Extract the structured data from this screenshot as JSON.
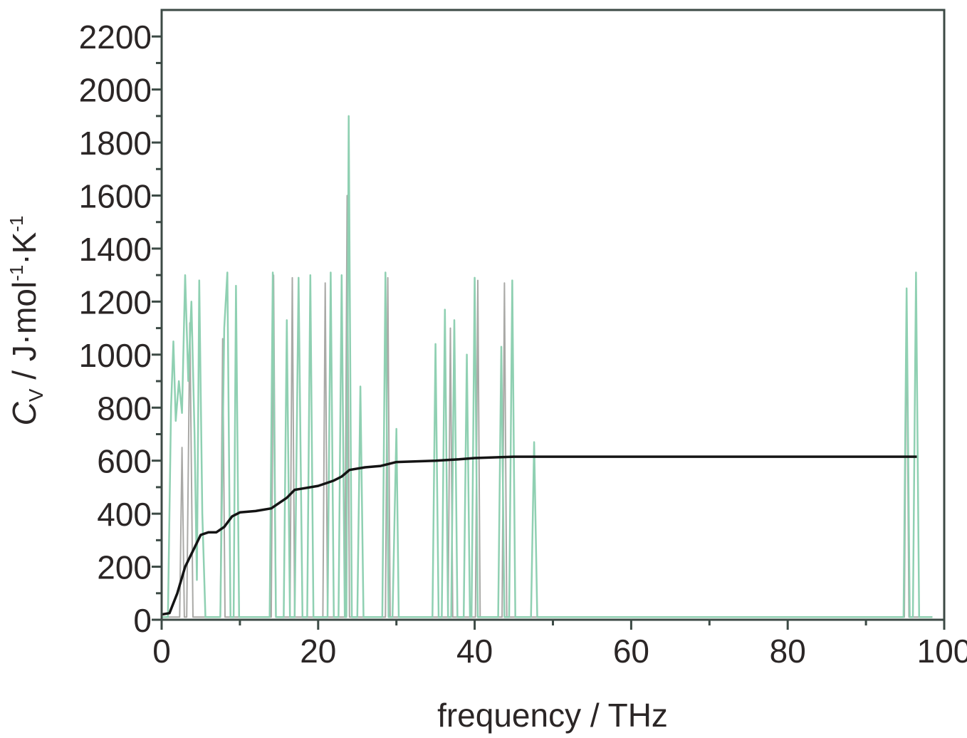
{
  "chart_data": {
    "type": "line",
    "x_label": "frequency / THz",
    "y_label": [
      "C",
      "V",
      " / J·mol",
      "-1",
      "·K",
      "-1"
    ],
    "xlim": [
      0,
      100
    ],
    "xticks": [
      0,
      20,
      40,
      60,
      80,
      100
    ],
    "x_minor_ticks": [
      10,
      30,
      50,
      70,
      90
    ],
    "ylim": [
      0,
      2300
    ],
    "yticks": [
      0,
      200,
      400,
      600,
      800,
      1000,
      1200,
      1400,
      1600,
      1800,
      2000,
      2200
    ],
    "y_minor_ticks": [
      100,
      300,
      500,
      700,
      900,
      1100,
      1300,
      1500,
      1700,
      1900,
      2100
    ],
    "series": [
      {
        "color": "#a9a9a6",
        "width": 2,
        "x": [
          0,
          2.3,
          2.6,
          2.9,
          3.2,
          3.6,
          4.0,
          7.5,
          7.8,
          8.1,
          14.0,
          14.3,
          14.6,
          16.4,
          16.7,
          17.0,
          20.6,
          20.9,
          21.2,
          23.4,
          23.7,
          24.0,
          28.6,
          28.9,
          29.2,
          36.6,
          36.9,
          37.2,
          40.1,
          40.4,
          40.7,
          43.5,
          43.8,
          44.1,
          94.9,
          95.2,
          95.5,
          98.5
        ],
        "values": [
          10,
          10,
          650,
          10,
          10,
          1120,
          10,
          10,
          1060,
          10,
          10,
          1300,
          10,
          10,
          1290,
          10,
          10,
          1270,
          10,
          10,
          1600,
          10,
          10,
          1290,
          10,
          10,
          1100,
          10,
          10,
          1280,
          10,
          10,
          1270,
          10,
          10,
          1180,
          10,
          10
        ]
      },
      {
        "color": "#8fd0b2",
        "width": 2.5,
        "x": [
          0,
          0.8,
          1.2,
          1.5,
          1.8,
          2.2,
          2.6,
          3.0,
          3.4,
          3.8,
          4.2,
          4.5,
          4.8,
          5.2,
          5.6,
          7.5,
          8.0,
          8.4,
          8.8,
          9.2,
          9.5,
          9.9,
          13.8,
          14.2,
          14.6,
          15.6,
          16.0,
          16.4,
          17.0,
          17.5,
          18.0,
          18.6,
          19.0,
          19.4,
          21.2,
          21.6,
          22.0,
          22.6,
          23.0,
          23.4,
          23.6,
          23.9,
          24.3,
          25.0,
          25.4,
          25.8,
          28.2,
          28.6,
          29.0,
          29.5,
          30.0,
          30.3,
          34.6,
          35.0,
          35.4,
          35.8,
          36.2,
          36.6,
          37.0,
          37.4,
          37.8,
          38.6,
          39.0,
          39.4,
          39.6,
          40.0,
          40.4,
          43.0,
          43.4,
          43.8,
          44.4,
          44.8,
          45.2,
          47.2,
          47.6,
          48.0,
          94.8,
          95.2,
          95.6,
          96.0,
          96.4,
          96.8,
          98.5
        ],
        "values": [
          10,
          10,
          800,
          1050,
          750,
          900,
          780,
          1300,
          900,
          1200,
          700,
          150,
          1280,
          400,
          10,
          10,
          1100,
          1310,
          10,
          10,
          1260,
          10,
          10,
          1310,
          10,
          10,
          1130,
          10,
          10,
          1290,
          10,
          10,
          1300,
          10,
          10,
          1310,
          10,
          10,
          1300,
          10,
          10,
          1900,
          10,
          10,
          880,
          10,
          10,
          1310,
          10,
          10,
          720,
          10,
          10,
          1040,
          10,
          10,
          1170,
          10,
          10,
          1130,
          10,
          10,
          1000,
          10,
          10,
          1290,
          10,
          10,
          1030,
          10,
          10,
          1280,
          10,
          10,
          670,
          10,
          10,
          1250,
          10,
          10,
          1310,
          10,
          10
        ]
      },
      {
        "color": "#141414",
        "width": 3.5,
        "x": [
          0,
          1,
          2,
          3,
          4,
          5,
          6,
          7,
          8,
          9,
          10,
          12,
          14,
          15,
          16,
          17,
          18,
          20,
          22,
          23,
          24,
          26,
          28,
          30,
          35,
          38,
          40,
          45,
          50,
          96.5
        ],
        "values": [
          20,
          25,
          100,
          200,
          260,
          320,
          330,
          330,
          350,
          390,
          405,
          410,
          420,
          440,
          460,
          490,
          495,
          505,
          525,
          540,
          565,
          575,
          580,
          595,
          600,
          605,
          610,
          615,
          615,
          615
        ]
      }
    ]
  }
}
